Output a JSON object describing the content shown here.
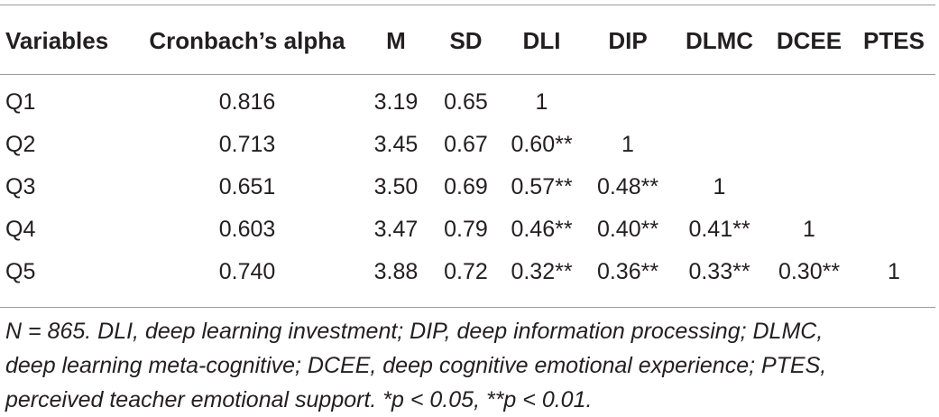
{
  "table": {
    "headers": [
      "Variables",
      "Cronbach’s alpha",
      "M",
      "SD",
      "DLI",
      "DIP",
      "DLMC",
      "DCEE",
      "PTES"
    ],
    "rows": [
      [
        "Q1",
        "0.816",
        "3.19",
        "0.65",
        "1",
        "",
        "",
        "",
        ""
      ],
      [
        "Q2",
        "0.713",
        "3.45",
        "0.67",
        "0.60**",
        "1",
        "",
        "",
        ""
      ],
      [
        "Q3",
        "0.651",
        "3.50",
        "0.69",
        "0.57**",
        "0.48**",
        "1",
        "",
        ""
      ],
      [
        "Q4",
        "0.603",
        "3.47",
        "0.79",
        "0.46**",
        "0.40**",
        "0.41**",
        "1",
        ""
      ],
      [
        "Q5",
        "0.740",
        "3.88",
        "0.72",
        "0.32**",
        "0.36**",
        "0.33**",
        "0.30**",
        "1"
      ]
    ]
  },
  "note": {
    "line1": "N = 865. DLI, deep learning investment; DIP, deep information processing; DLMC,",
    "line2": "deep learning meta-cognitive; DCEE, deep cognitive emotional experience; PTES,",
    "line3": "perceived teacher emotional support. *p < 0.05, **p < 0.01."
  }
}
